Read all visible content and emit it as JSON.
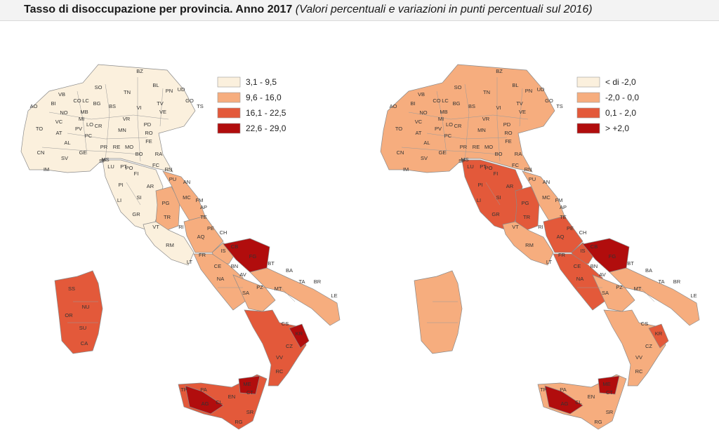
{
  "title": {
    "main": "Tasso di disoccupazione per provincia. Anno 2017",
    "sub": "(Valori percentuali e variazioni in punti percentuali sul 2016)"
  },
  "colors": {
    "lightest": "#fbf0dd",
    "light": "#f6ad7e",
    "medium": "#e3593a",
    "dark": "#b10d0d",
    "border": "#8a8a8a"
  },
  "maps": [
    {
      "legend": [
        {
          "label": "3,1 - 9,5",
          "color": "#fbf0dd"
        },
        {
          "label": "9,6 - 16,0",
          "color": "#f6ad7e"
        },
        {
          "label": "16,1 - 22,5",
          "color": "#e3593a"
        },
        {
          "label": "22,6 - 29,0",
          "color": "#b10d0d"
        }
      ],
      "north_color": "#fbf0dd",
      "lazio_color": "#fbf0dd",
      "toscana_color": "#fbf0dd",
      "umbria_color": "#f6ad7e",
      "marche_color": "#f6ad7e",
      "abruzzo_color": "#f6ad7e",
      "molise_color": "#f6ad7e",
      "foggia_color": "#b10d0d",
      "puglia_color": "#f6ad7e",
      "campania_color": "#f6ad7e",
      "basilicata_color": "#f6ad7e",
      "calabria_color": "#e3593a",
      "crotone_color": "#b10d0d",
      "sicilia_color": "#e3593a",
      "sicilia_dark_color": "#b10d0d",
      "sardegna_color": "#e3593a",
      "provinces": [
        "BZ",
        "SO",
        "TN",
        "BL",
        "UD",
        "PN",
        "VB",
        "BG",
        "TV",
        "GO",
        "TS",
        "BI",
        "CO",
        "LC",
        "BS",
        "VI",
        "VE",
        "AO",
        "NO",
        "MB",
        "VR",
        "PD",
        "VC",
        "MI",
        "TO",
        "PV",
        "CR",
        "LO",
        "MN",
        "RO",
        "AT",
        "PC",
        "FE",
        "AL",
        "PR",
        "RE",
        "MO",
        "GE",
        "BO",
        "SV",
        "SP",
        "MS",
        "RA",
        "CN",
        "LU",
        "PT",
        "FC",
        "IM",
        "RN",
        "PI",
        "FI",
        "PO",
        "PU",
        "AR",
        "AN",
        "SI",
        "MC",
        "PG",
        "FM",
        "LI",
        "AP",
        "GR",
        "TR",
        "TE",
        "VT",
        "RI",
        "PE",
        "AQ",
        "CH",
        "RM",
        "CB",
        "IS",
        "FR",
        "LT",
        "CE",
        "FG",
        "BN",
        "BT",
        "NA",
        "AV",
        "BA",
        "PZ",
        "MT",
        "TA",
        "BR",
        "SA",
        "LE",
        "CS",
        "KR",
        "CZ",
        "VV",
        "RC",
        "SS",
        "NU",
        "OR",
        "SU",
        "CA",
        "TP",
        "PA",
        "ME",
        "AG",
        "CL",
        "EN",
        "CT",
        "RG",
        "SR"
      ]
    },
    {
      "legend": [
        {
          "label": "< di -2,0",
          "color": "#fbf0dd"
        },
        {
          "label": "-2,0 - 0,0",
          "color": "#f6ad7e"
        },
        {
          "label": "0,1 - 2,0",
          "color": "#e3593a"
        },
        {
          "label": "> +2,0",
          "color": "#b10d0d"
        }
      ],
      "north_color": "#f6ad7e",
      "lazio_color": "#f6ad7e",
      "toscana_color": "#e3593a",
      "umbria_color": "#e3593a",
      "marche_color": "#f6ad7e",
      "abruzzo_color": "#e3593a",
      "molise_color": "#e3593a",
      "foggia_color": "#b10d0d",
      "puglia_color": "#f6ad7e",
      "campania_color": "#e3593a",
      "basilicata_color": "#f6ad7e",
      "calabria_color": "#f6ad7e",
      "crotone_color": "#e3593a",
      "sicilia_color": "#f6ad7e",
      "sicilia_dark_color": "#b10d0d",
      "sardegna_color": "#f6ad7e",
      "provinces": [
        "BZ",
        "SO",
        "TN",
        "BL",
        "UD",
        "PN",
        "VB",
        "BG",
        "TV",
        "GO",
        "TS",
        "BI",
        "CO",
        "LC",
        "BS",
        "VI",
        "VE",
        "AO",
        "NO",
        "MB",
        "VR",
        "PD",
        "VC",
        "MI",
        "TO",
        "PV",
        "CR",
        "LO",
        "MN",
        "RO",
        "AT",
        "PC",
        "FE",
        "AL",
        "PR",
        "RE",
        "MO",
        "GE",
        "BO",
        "SV",
        "SP",
        "MS",
        "RA",
        "CN",
        "LU",
        "PT",
        "FC",
        "IM",
        "RN",
        "PI",
        "FI",
        "PO",
        "PU",
        "AR",
        "AN",
        "SI",
        "MC",
        "PG",
        "FM",
        "LI",
        "AP",
        "GR",
        "TR",
        "TE",
        "VT",
        "RI",
        "PE",
        "AQ",
        "CH",
        "RM",
        "CB",
        "IS",
        "FR",
        "LT",
        "CE",
        "FG",
        "BN",
        "BT",
        "NA",
        "AV",
        "BA",
        "PZ",
        "MT",
        "TA",
        "BR",
        "SA",
        "LE",
        "CS",
        "KR",
        "CZ",
        "VV",
        "RC",
        "TP",
        "PA",
        "ME",
        "AG",
        "CL",
        "EN",
        "CT",
        "RG",
        "SR"
      ]
    }
  ]
}
